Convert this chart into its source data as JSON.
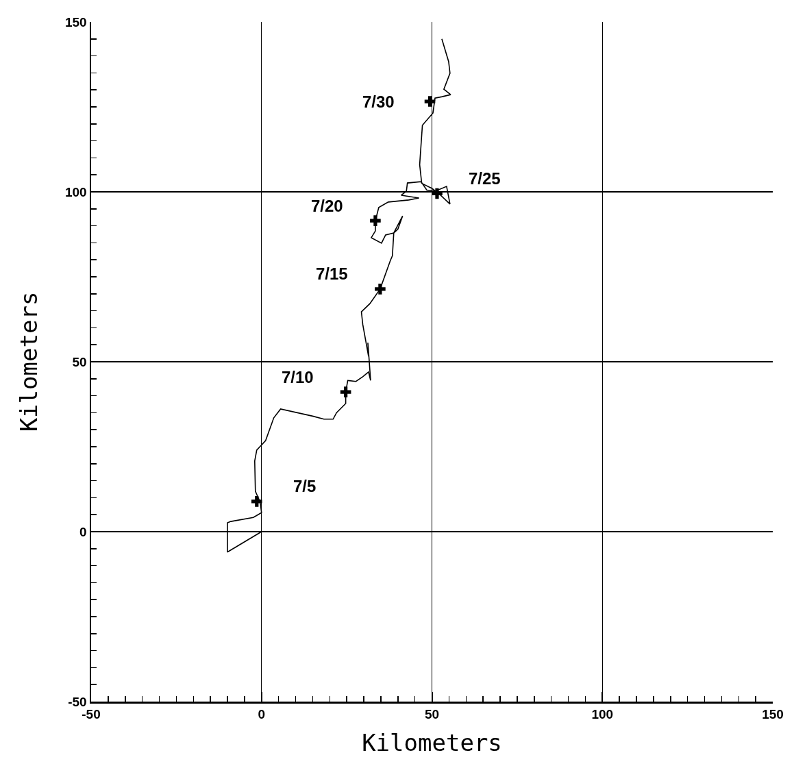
{
  "chart_data": {
    "type": "line",
    "xlabel": "Kilometers",
    "ylabel": "Kilometers",
    "xlim": [
      -50,
      150
    ],
    "ylim": [
      -50,
      150
    ],
    "xticks": [
      -50,
      {
        "value": -45,
        "label": null
      },
      {
        "value": -40,
        "label": null
      },
      {
        "value": -35,
        "label": null
      },
      {
        "value": -30,
        "label": null
      },
      {
        "value": -25,
        "label": null
      },
      {
        "value": -20,
        "label": null
      },
      {
        "value": -15,
        "label": null
      },
      {
        "value": -10,
        "label": null
      },
      {
        "value": -5,
        "label": null
      },
      0,
      {
        "value": 5,
        "label": null
      },
      {
        "value": 10,
        "label": null
      },
      {
        "value": 15,
        "label": null
      },
      {
        "value": 20,
        "label": null
      },
      {
        "value": 25,
        "label": null
      },
      {
        "value": 30,
        "label": null
      },
      {
        "value": 35,
        "label": null
      },
      {
        "value": 40,
        "label": null
      },
      {
        "value": 45,
        "label": null
      },
      50,
      {
        "value": 55,
        "label": null
      },
      {
        "value": 60,
        "label": null
      },
      {
        "value": 65,
        "label": null
      },
      {
        "value": 70,
        "label": null
      },
      {
        "value": 75,
        "label": null
      },
      {
        "value": 80,
        "label": null
      },
      {
        "value": 85,
        "label": null
      },
      {
        "value": 90,
        "label": null
      },
      {
        "value": 95,
        "label": null
      },
      100,
      {
        "value": 105,
        "label": null
      },
      {
        "value": 110,
        "label": null
      },
      {
        "value": 115,
        "label": null
      },
      {
        "value": 120,
        "label": null
      },
      {
        "value": 125,
        "label": null
      },
      {
        "value": 130,
        "label": null
      },
      {
        "value": 135,
        "label": null
      },
      {
        "value": 140,
        "label": null
      },
      {
        "value": 145,
        "label": null
      },
      150
    ],
    "yticks": [
      -50,
      {
        "value": -45,
        "label": null
      },
      {
        "value": -40,
        "label": null
      },
      {
        "value": -35,
        "label": null
      },
      {
        "value": -30,
        "label": null
      },
      {
        "value": -25,
        "label": null
      },
      {
        "value": -20,
        "label": null
      },
      {
        "value": -15,
        "label": null
      },
      {
        "value": -10,
        "label": null
      },
      {
        "value": -5,
        "label": null
      },
      0,
      {
        "value": 5,
        "label": null
      },
      {
        "value": 10,
        "label": null
      },
      {
        "value": 15,
        "label": null
      },
      {
        "value": 20,
        "label": null
      },
      {
        "value": 25,
        "label": null
      },
      {
        "value": 30,
        "label": null
      },
      {
        "value": 35,
        "label": null
      },
      {
        "value": 40,
        "label": null
      },
      {
        "value": 45,
        "label": null
      },
      50,
      {
        "value": 55,
        "label": null
      },
      {
        "value": 60,
        "label": null
      },
      {
        "value": 65,
        "label": null
      },
      {
        "value": 70,
        "label": null
      },
      {
        "value": 75,
        "label": null
      },
      {
        "value": 80,
        "label": null
      },
      {
        "value": 85,
        "label": null
      },
      {
        "value": 90,
        "label": null
      },
      {
        "value": 95,
        "label": null
      },
      100,
      {
        "value": 105,
        "label": null
      },
      {
        "value": 110,
        "label": null
      },
      {
        "value": 115,
        "label": null
      },
      {
        "value": 120,
        "label": null
      },
      {
        "value": 125,
        "label": null
      },
      {
        "value": 130,
        "label": null
      },
      {
        "value": 135,
        "label": null
      },
      {
        "value": 140,
        "label": null
      },
      {
        "value": 145,
        "label": null
      },
      150
    ],
    "grid": true,
    "series": [
      {
        "color": "#000000",
        "marker": "none",
        "line_style": "solid",
        "x": [
          0,
          -10,
          -10,
          -9,
          -2.4,
          0,
          -0.4,
          -1.8,
          -2,
          -1.4,
          1.2,
          3.6,
          5.6,
          15,
          18.3,
          21,
          22,
          24.7,
          24.7,
          25.3,
          27.7,
          29.7,
          31.4,
          32,
          31.6,
          31.2,
          31.4,
          29.7,
          29.3,
          31.8,
          34.8,
          37.8,
          38.4,
          38.8,
          41.4,
          40,
          38.8,
          36.4,
          35.2,
          32.2,
          33.4,
          33.4,
          34.4,
          37.2,
          43.2,
          46.2,
          41,
          42.5,
          42.8,
          46.8,
          48.5,
          51,
          54.3,
          55.3,
          52,
          50,
          47,
          46.4,
          47.2,
          50.3,
          50.9,
          53,
          55.5,
          53.5,
          55.3,
          54.9,
          52.9
        ],
        "values": [
          0,
          -6,
          2.6,
          3,
          4.2,
          5.6,
          8.7,
          11.9,
          20.8,
          24,
          26.8,
          33.5,
          36.1,
          34,
          33.1,
          33.1,
          35,
          37.7,
          41.1,
          44.5,
          44.2,
          45.6,
          47,
          44.5,
          50.2,
          55.6,
          51.6,
          61,
          64.7,
          67.1,
          71.4,
          79.8,
          81.2,
          87.9,
          92.9,
          89,
          87.9,
          87.3,
          84.9,
          86.5,
          88.5,
          91.5,
          95.4,
          97,
          97.6,
          98.2,
          99,
          100.2,
          102.6,
          103,
          100.5,
          100.2,
          101.6,
          96.4,
          99.5,
          101,
          102.5,
          108,
          119.6,
          123.2,
          127.6,
          128,
          128.6,
          130.2,
          134.9,
          138.3,
          145
        ]
      },
      {
        "type": "scatter",
        "color": "#000000",
        "marker": "cross",
        "x": [
          -1.4,
          24.7,
          34.8,
          33.4,
          51.5,
          49.4
        ],
        "values": [
          8.9,
          41.1,
          71.4,
          91.5,
          99.5,
          126.6
        ]
      }
    ],
    "annotations": [
      {
        "text": "7/5",
        "x": -1.4,
        "y": 8.9
      },
      {
        "text": "7/10",
        "x": 24.7,
        "y": 41.1
      },
      {
        "text": "7/15",
        "x": 34.8,
        "y": 71.4
      },
      {
        "text": "7/20",
        "x": 33.4,
        "y": 91.5
      },
      {
        "text": "7/25",
        "x": 51.5,
        "y": 99.5
      },
      {
        "text": "7/30",
        "x": 49.4,
        "y": 126.6
      }
    ]
  }
}
